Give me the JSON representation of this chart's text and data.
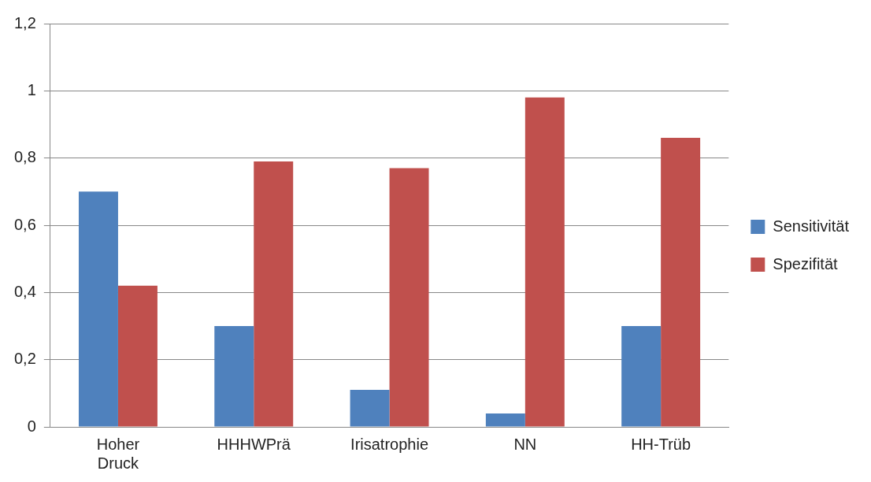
{
  "chart_data": {
    "type": "bar",
    "categories": [
      "Hoher Druck",
      "HHHWPrä",
      "Irisatrophie",
      "NN",
      "HH-Trüb"
    ],
    "series": [
      {
        "name": "Sensitivität",
        "color": "#4f81bd",
        "values": [
          0.7,
          0.3,
          0.11,
          0.04,
          0.3
        ]
      },
      {
        "name": "Spezifität",
        "color": "#c0504d",
        "values": [
          0.42,
          0.79,
          0.77,
          0.98,
          0.86
        ]
      }
    ],
    "ylim": [
      0,
      1.2
    ],
    "yticks": [
      0,
      {
        "value": 0.2,
        "label": "0,2"
      },
      {
        "value": 0.4,
        "label": "0,4"
      },
      {
        "value": 0.6,
        "label": "0,6"
      },
      {
        "value": 0.8,
        "label": "0,8"
      },
      1,
      {
        "value": 1.2,
        "label": "1,2"
      }
    ],
    "grid": "y",
    "legend": "right"
  }
}
